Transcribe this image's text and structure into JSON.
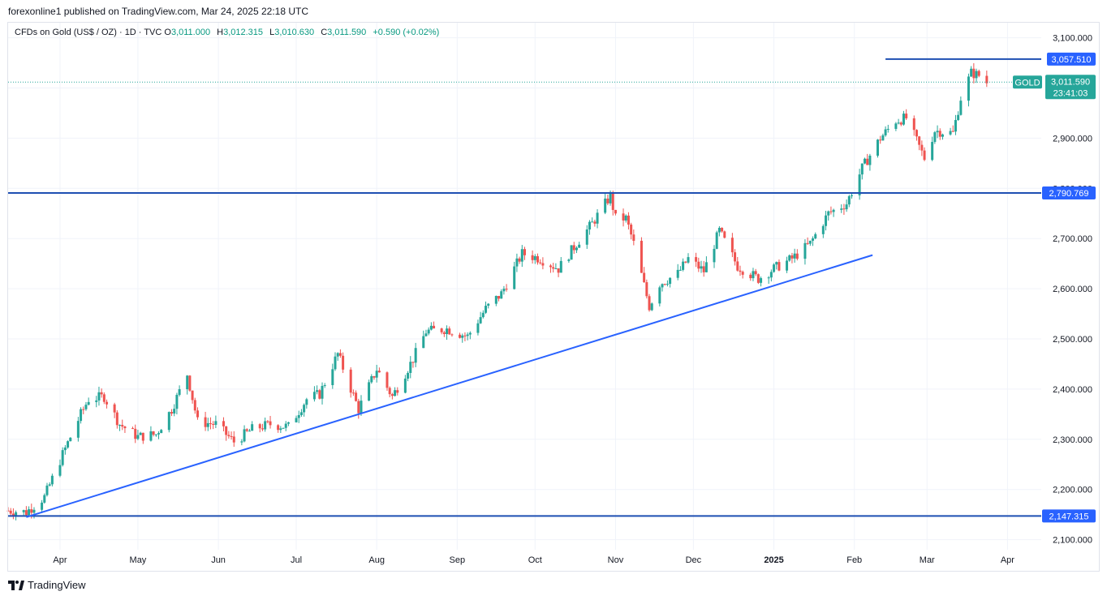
{
  "header": {
    "published": "forexonline1 published on TradingView.com, Mar 24, 2025 22:18 UTC"
  },
  "legend": {
    "symbol": "CFDs on Gold (US$ / OZ) · 1D · TVC",
    "o_label": "O",
    "o_value": "3,011.000",
    "h_label": "H",
    "h_value": "3,012.315",
    "l_label": "L",
    "l_value": "3,010.630",
    "c_label": "C",
    "c_value": "3,011.590",
    "change": "+0.590 (+0.02%)"
  },
  "footer": {
    "brand": "TradingView"
  },
  "colors": {
    "up": "#26a69a",
    "down": "#ef5350",
    "line": "#2962ff",
    "level": "#1e4fb2",
    "badge_blue": "#2962ff",
    "badge_green": "#26a69a"
  },
  "chart_data": {
    "type": "candlestick",
    "ylim": [
      2080,
      3130
    ],
    "y_ticks": [
      2100,
      2200,
      2300,
      2400,
      2500,
      2600,
      2700,
      2800,
      2900,
      3000,
      3100
    ],
    "y_tick_labels": [
      "2,100.000",
      "2,200.000",
      "2,300.000",
      "2,400.000",
      "2,500.000",
      "2,600.000",
      "2,700.000",
      "2,800.000",
      "2,900.000",
      "",
      "3,100.000"
    ],
    "x_labels": [
      "Apr",
      "May",
      "Jun",
      "Jul",
      "Aug",
      "Sep",
      "Oct",
      "Nov",
      "Dec",
      "2025",
      "Feb",
      "Mar",
      "Apr"
    ],
    "x_label_dates": [
      "2024-04-01",
      "2024-05-01",
      "2024-06-01",
      "2024-07-01",
      "2024-08-01",
      "2024-09-01",
      "2024-10-01",
      "2024-11-01",
      "2024-12-01",
      "2025-01-01",
      "2025-02-01",
      "2025-03-01",
      "2025-04-01"
    ],
    "x_range": [
      "2024-03-12",
      "2025-04-14"
    ],
    "price_path": [
      [
        "2024-03-12",
        2158
      ],
      [
        "2024-03-19",
        2155
      ],
      [
        "2024-03-26",
        2185
      ],
      [
        "2024-04-02",
        2270
      ],
      [
        "2024-04-09",
        2350
      ],
      [
        "2024-04-12",
        2380
      ],
      [
        "2024-04-18",
        2385
      ],
      [
        "2024-04-24",
        2330
      ],
      [
        "2024-05-01",
        2305
      ],
      [
        "2024-05-08",
        2310
      ],
      [
        "2024-05-14",
        2360
      ],
      [
        "2024-05-20",
        2430
      ],
      [
        "2024-05-24",
        2335
      ],
      [
        "2024-05-31",
        2330
      ],
      [
        "2024-06-07",
        2295
      ],
      [
        "2024-06-14",
        2320
      ],
      [
        "2024-06-21",
        2330
      ],
      [
        "2024-06-28",
        2325
      ],
      [
        "2024-07-05",
        2380
      ],
      [
        "2024-07-10",
        2390
      ],
      [
        "2024-07-17",
        2470
      ],
      [
        "2024-07-25",
        2360
      ],
      [
        "2024-08-01",
        2440
      ],
      [
        "2024-08-07",
        2385
      ],
      [
        "2024-08-15",
        2460
      ],
      [
        "2024-08-20",
        2515
      ],
      [
        "2024-08-28",
        2520
      ],
      [
        "2024-09-05",
        2505
      ],
      [
        "2024-09-12",
        2560
      ],
      [
        "2024-09-18",
        2590
      ],
      [
        "2024-09-26",
        2670
      ],
      [
        "2024-10-03",
        2660
      ],
      [
        "2024-10-10",
        2640
      ],
      [
        "2024-10-17",
        2690
      ],
      [
        "2024-10-23",
        2730
      ],
      [
        "2024-10-30",
        2785
      ],
      [
        "2024-11-01",
        2740
      ],
      [
        "2024-11-05",
        2740
      ],
      [
        "2024-11-08",
        2690
      ],
      [
        "2024-11-14",
        2565
      ],
      [
        "2024-11-18",
        2610
      ],
      [
        "2024-11-25",
        2630
      ],
      [
        "2024-11-29",
        2660
      ],
      [
        "2024-12-05",
        2635
      ],
      [
        "2024-12-11",
        2715
      ],
      [
        "2024-12-18",
        2645
      ],
      [
        "2024-12-26",
        2620
      ],
      [
        "2025-01-01",
        2640
      ],
      [
        "2025-01-08",
        2660
      ],
      [
        "2025-01-15",
        2690
      ],
      [
        "2025-01-22",
        2750
      ],
      [
        "2025-01-29",
        2770
      ],
      [
        "2025-02-04",
        2840
      ],
      [
        "2025-02-11",
        2900
      ],
      [
        "2025-02-17",
        2935
      ],
      [
        "2025-02-21",
        2940
      ],
      [
        "2025-02-28",
        2860
      ],
      [
        "2025-03-04",
        2915
      ],
      [
        "2025-03-11",
        2910
      ],
      [
        "2025-03-14",
        2980
      ],
      [
        "2025-03-18",
        3030
      ],
      [
        "2025-03-21",
        3025
      ],
      [
        "2025-03-24",
        3011
      ]
    ],
    "trendline": [
      [
        "2024-03-19",
        2145
      ],
      [
        "2025-02-08",
        2667
      ]
    ],
    "levels": [
      {
        "value": 2790.769,
        "label": "2,790.769"
      },
      {
        "value": 2147.315,
        "label": "2,147.315"
      }
    ],
    "short_level": {
      "value": 3057.51,
      "label": "3,057.510",
      "from": "2025-02-13"
    },
    "last_price": {
      "value": 3011.59,
      "symbol": "GOLD",
      "label": "3,011.590",
      "countdown": "23:41:03"
    }
  }
}
